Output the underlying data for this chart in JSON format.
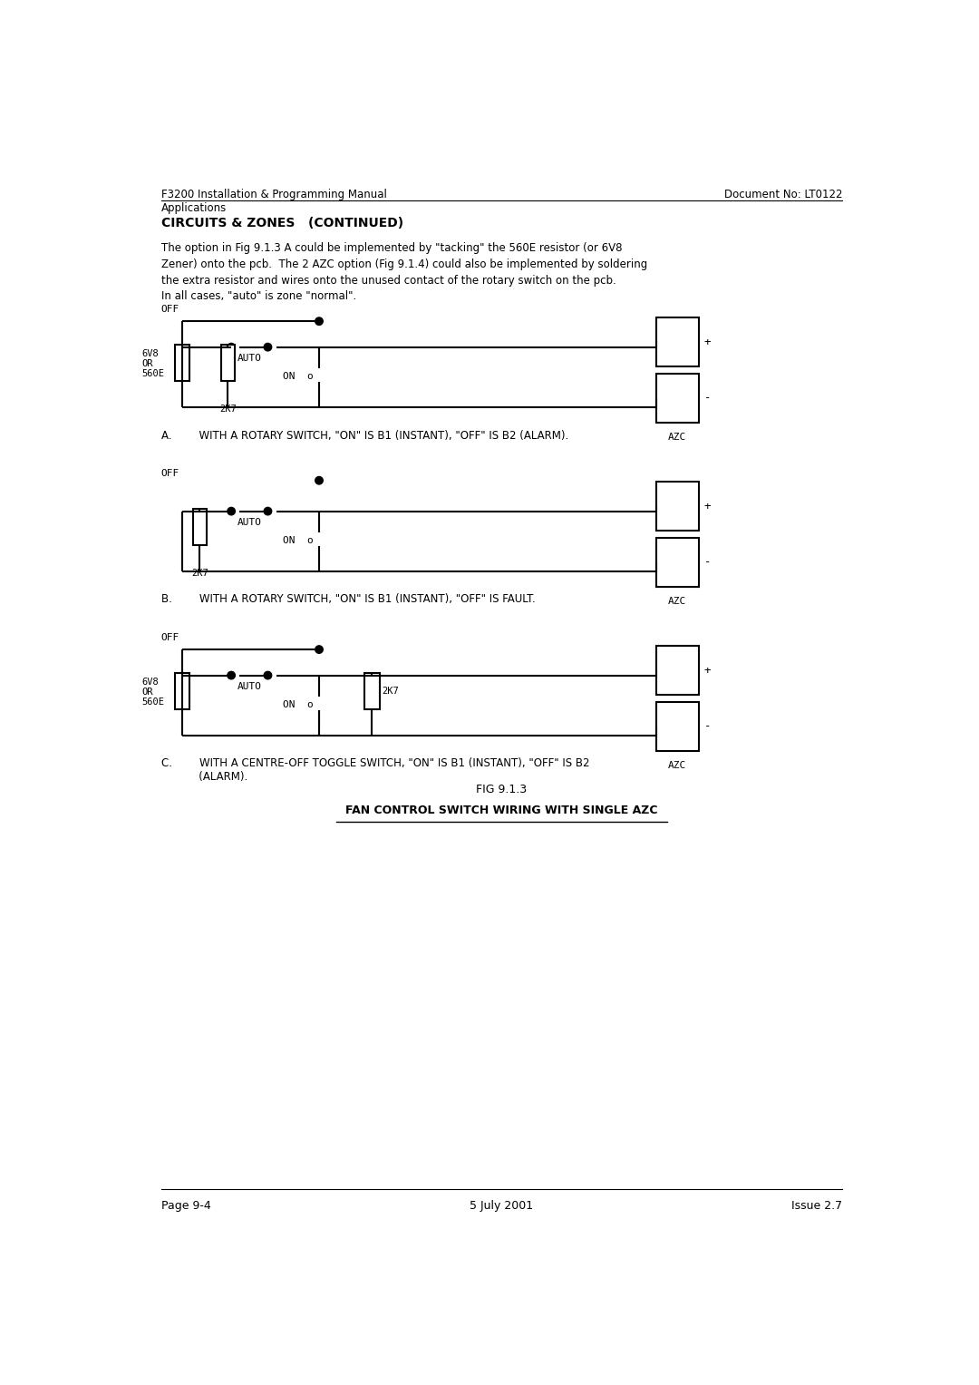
{
  "title_left": "F3200 Installation & Programming Manual\nApplications",
  "title_right": "Document No: LT0122",
  "section_title": "CIRCUITS & ZONES   (CONTINUED)",
  "body_text": "The option in Fig 9.1.3 A could be implemented by \"tacking\" the 560E resistor (or 6V8\nZener) onto the pcb.  The 2 AZC option (Fig 9.1.4) could also be implemented by soldering\nthe extra resistor and wires onto the unused contact of the rotary switch on the pcb.",
  "body_text2": "In all cases, \"auto\" is zone \"normal\".",
  "caption_A": "A.        WITH A ROTARY SWITCH, \"ON\" IS B1 (INSTANT), \"OFF\" IS B2 (ALARM).",
  "caption_B": "B.        WITH A ROTARY SWITCH, \"ON\" IS B1 (INSTANT), \"OFF\" IS FAULT.",
  "caption_C": "C.        WITH A CENTRE-OFF TOGGLE SWITCH, \"ON\" IS B1 (INSTANT), \"OFF\" IS B2\n           (ALARM).",
  "fig_title1": "FIG 9.1.3",
  "fig_title2": "FAN CONTROL SWITCH WIRING WITH SINGLE AZC",
  "footer_left": "Page 9-4",
  "footer_center": "5 July 2001",
  "footer_right": "Issue 2.7",
  "bg_color": "#ffffff",
  "text_color": "#000000",
  "line_color": "#000000"
}
